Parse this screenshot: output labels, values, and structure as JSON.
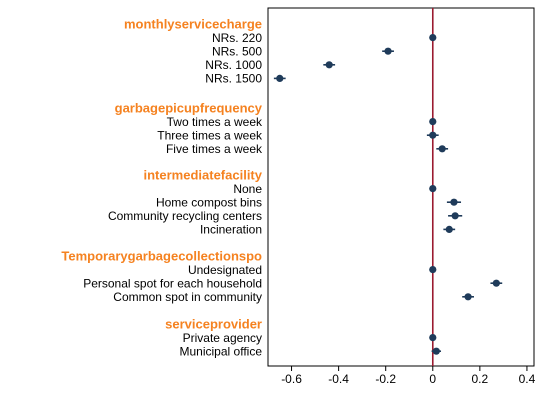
{
  "chart_data": {
    "type": "scatter",
    "subtype": "coefficient-plot",
    "orientation": "horizontal",
    "x_ticks": [
      -0.6,
      -0.4,
      -0.2,
      0,
      0.2,
      0.4
    ],
    "x_tick_labels": [
      "-0.6",
      "-0.4",
      "-0.2",
      "0",
      "0.2",
      "0.4"
    ],
    "xlim": [
      -0.7,
      0.43
    ],
    "reference_line": 0,
    "grid": false,
    "colors": {
      "group_title": "#f58220",
      "marker": "#1f3b5a",
      "reference_line": "#9b1b30",
      "frame": "#000000"
    },
    "groups": [
      {
        "title": "monthlyservicecharge",
        "levels": [
          {
            "label": "NRs. 220",
            "estimate": 0.0,
            "ci": [
              0.0,
              0.0
            ]
          },
          {
            "label": "NRs. 500",
            "estimate": -0.19,
            "ci": [
              -0.215,
              -0.165
            ]
          },
          {
            "label": "NRs. 1000",
            "estimate": -0.44,
            "ci": [
              -0.465,
              -0.415
            ]
          },
          {
            "label": "NRs. 1500",
            "estimate": -0.65,
            "ci": [
              -0.675,
              -0.625
            ]
          }
        ]
      },
      {
        "title": "garbagepicupfrequency",
        "levels": [
          {
            "label": "Two times a week",
            "estimate": 0.0,
            "ci": [
              0.0,
              0.0
            ]
          },
          {
            "label": "Three times a week",
            "estimate": 0.0,
            "ci": [
              -0.025,
              0.025
            ]
          },
          {
            "label": "Five times a week",
            "estimate": 0.04,
            "ci": [
              0.015,
              0.065
            ]
          }
        ]
      },
      {
        "title": "intermediatefacility",
        "levels": [
          {
            "label": "None",
            "estimate": 0.0,
            "ci": [
              0.0,
              0.0
            ]
          },
          {
            "label": "Home compost bins",
            "estimate": 0.09,
            "ci": [
              0.06,
              0.12
            ]
          },
          {
            "label": "Community recycling centers",
            "estimate": 0.095,
            "ci": [
              0.065,
              0.125
            ]
          },
          {
            "label": "Incineration",
            "estimate": 0.07,
            "ci": [
              0.045,
              0.095
            ]
          }
        ]
      },
      {
        "title": "Temporarygarbagecollectionspo",
        "levels": [
          {
            "label": "Undesignated",
            "estimate": 0.0,
            "ci": [
              0.0,
              0.0
            ]
          },
          {
            "label": "Personal spot for each household",
            "estimate": 0.27,
            "ci": [
              0.245,
              0.295
            ]
          },
          {
            "label": "Common spot in community",
            "estimate": 0.15,
            "ci": [
              0.125,
              0.175
            ]
          }
        ]
      },
      {
        "title": "serviceprovider",
        "levels": [
          {
            "label": "Private agency",
            "estimate": 0.0,
            "ci": [
              0.0,
              0.0
            ]
          },
          {
            "label": "Municipal office",
            "estimate": 0.015,
            "ci": [
              -0.005,
              0.035
            ]
          }
        ]
      }
    ]
  }
}
